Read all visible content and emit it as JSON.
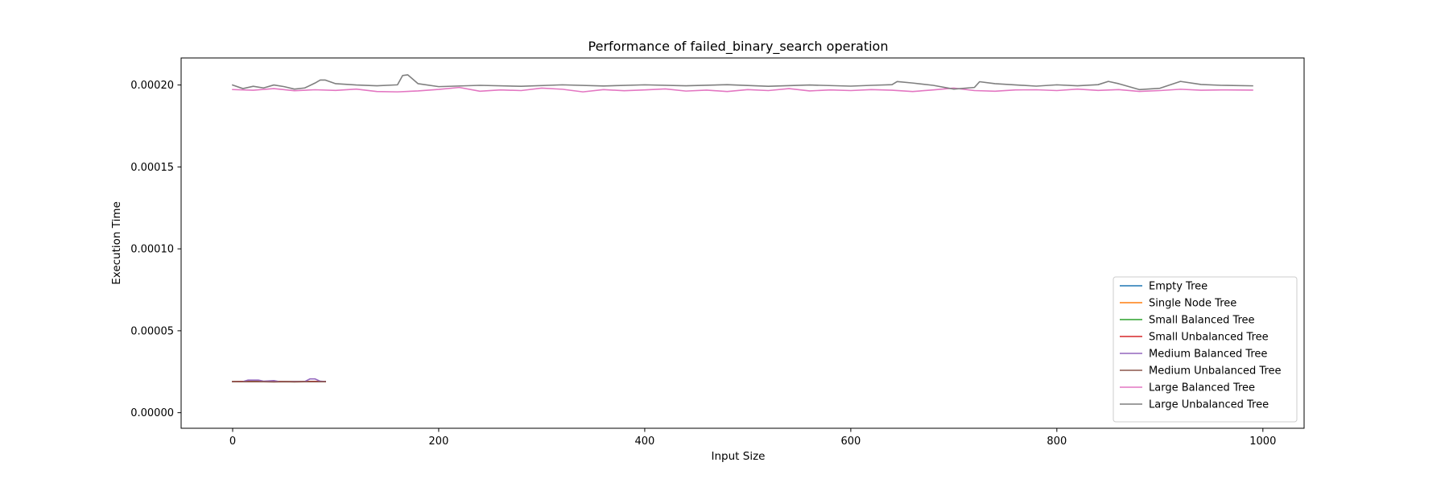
{
  "chart_data": {
    "type": "line",
    "title": "Performance of failed_binary_search operation",
    "xlabel": "Input Size",
    "ylabel": "Execution Time",
    "xlim": [
      -50,
      1040
    ],
    "ylim": [
      -9.5e-06,
      0.0002165
    ],
    "xticks": [
      0,
      200,
      400,
      600,
      800,
      1000
    ],
    "xtick_labels": [
      "0",
      "200",
      "400",
      "600",
      "800",
      "1000"
    ],
    "yticks": [
      0.0,
      5e-05,
      0.0001,
      0.00015,
      0.0002
    ],
    "ytick_labels": [
      "0.00000",
      "0.00005",
      "0.00010",
      "0.00015",
      "0.00020"
    ],
    "grid": false,
    "legend_position": "lower-right",
    "series": [
      {
        "name": "Empty Tree",
        "color": "#1f77b4",
        "x": [
          0,
          10,
          20,
          30,
          40,
          50,
          60,
          70,
          80,
          90
        ],
        "y": [
          1.89e-05,
          1.89e-05,
          1.9e-05,
          1.89e-05,
          1.89e-05,
          1.9e-05,
          1.89e-05,
          1.89e-05,
          1.89e-05,
          1.89e-05
        ]
      },
      {
        "name": "Single Node Tree",
        "color": "#ff7f0e",
        "x": [
          0,
          10,
          20,
          30,
          40,
          50,
          60,
          70,
          80,
          90
        ],
        "y": [
          1.89e-05,
          1.9e-05,
          1.9e-05,
          1.89e-05,
          1.89e-05,
          1.89e-05,
          1.89e-05,
          1.9e-05,
          1.89e-05,
          1.89e-05
        ]
      },
      {
        "name": "Small Balanced Tree",
        "color": "#2ca02c",
        "x": [
          0,
          10,
          20,
          30,
          40,
          50,
          60,
          70,
          80,
          90
        ],
        "y": [
          1.9e-05,
          1.9e-05,
          1.91e-05,
          1.9e-05,
          1.9e-05,
          1.89e-05,
          1.9e-05,
          1.9e-05,
          1.9e-05,
          1.9e-05
        ]
      },
      {
        "name": "Small Unbalanced Tree",
        "color": "#d62728",
        "x": [
          0,
          10,
          20,
          30,
          40,
          50,
          60,
          70,
          80,
          90
        ],
        "y": [
          1.9e-05,
          1.91e-05,
          1.9e-05,
          1.9e-05,
          1.91e-05,
          1.9e-05,
          1.9e-05,
          1.9e-05,
          1.91e-05,
          1.9e-05
        ]
      },
      {
        "name": "Medium Balanced Tree",
        "color": "#9467bd",
        "x": [
          0,
          10,
          15,
          25,
          30,
          40,
          45,
          55,
          60,
          70,
          75,
          80,
          85,
          90
        ],
        "y": [
          1.89e-05,
          1.9e-05,
          1.99e-05,
          1.99e-05,
          1.92e-05,
          1.96e-05,
          1.9e-05,
          1.89e-05,
          1.9e-05,
          1.9e-05,
          2.06e-05,
          2.06e-05,
          1.92e-05,
          1.9e-05
        ]
      },
      {
        "name": "Medium Unbalanced Tree",
        "color": "#8c564b",
        "x": [
          0,
          10,
          20,
          30,
          40,
          50,
          60,
          70,
          80,
          90
        ],
        "y": [
          1.89e-05,
          1.89e-05,
          1.9e-05,
          1.89e-05,
          1.88e-05,
          1.89e-05,
          1.88e-05,
          1.89e-05,
          1.89e-05,
          1.89e-05
        ]
      },
      {
        "name": "Large Balanced Tree",
        "color": "#e377c2",
        "x": [
          0,
          20,
          40,
          60,
          80,
          100,
          120,
          140,
          160,
          180,
          200,
          220,
          240,
          260,
          280,
          300,
          320,
          340,
          360,
          380,
          400,
          420,
          440,
          460,
          480,
          500,
          520,
          540,
          560,
          580,
          600,
          620,
          640,
          660,
          680,
          700,
          720,
          740,
          760,
          780,
          800,
          820,
          840,
          860,
          880,
          900,
          920,
          940,
          960,
          990
        ],
        "y": [
          0.0001972,
          0.0001968,
          0.0001978,
          0.0001965,
          0.0001971,
          0.0001967,
          0.0001975,
          0.000196,
          0.0001958,
          0.0001964,
          0.0001973,
          0.0001985,
          0.0001962,
          0.000197,
          0.0001966,
          0.0001981,
          0.0001974,
          0.0001958,
          0.0001972,
          0.0001965,
          0.000197,
          0.0001976,
          0.0001963,
          0.0001969,
          0.000196,
          0.0001972,
          0.0001966,
          0.0001978,
          0.0001964,
          0.000197,
          0.0001966,
          0.0001972,
          0.0001968,
          0.000196,
          0.000197,
          0.0001981,
          0.0001966,
          0.0001962,
          0.000197,
          0.0001971,
          0.0001966,
          0.0001975,
          0.0001967,
          0.0001972,
          0.0001961,
          0.0001966,
          0.0001974,
          0.0001968,
          0.000197,
          0.0001969
        ]
      },
      {
        "name": "Large Unbalanced Tree",
        "color": "#7f7f7f",
        "x": [
          0,
          10,
          20,
          30,
          40,
          50,
          60,
          70,
          80,
          85,
          90,
          100,
          120,
          140,
          160,
          165,
          170,
          180,
          200,
          240,
          280,
          320,
          360,
          400,
          440,
          480,
          520,
          560,
          600,
          620,
          640,
          645,
          660,
          680,
          700,
          720,
          725,
          740,
          780,
          800,
          820,
          840,
          850,
          860,
          880,
          900,
          910,
          920,
          940,
          960,
          990
        ],
        "y": [
          0.0002,
          0.0001978,
          0.0001992,
          0.0001982,
          0.0002,
          0.000199,
          0.0001975,
          0.0001982,
          0.0002012,
          0.000203,
          0.000203,
          0.0002008,
          0.0002,
          0.0001995,
          0.0002001,
          0.0002058,
          0.0002062,
          0.0002008,
          0.000199,
          0.0001998,
          0.0001992,
          0.0002001,
          0.0001994,
          0.0002001,
          0.0001995,
          0.0002002,
          0.0001992,
          0.0002,
          0.0001993,
          0.0001998,
          0.0002002,
          0.0002021,
          0.0002012,
          0.0001998,
          0.0001975,
          0.0001985,
          0.000202,
          0.0002008,
          0.0001993,
          0.0002001,
          0.0001995,
          0.0002002,
          0.0002022,
          0.0002008,
          0.0001972,
          0.000198,
          0.0002001,
          0.0002022,
          0.0002003,
          0.0001998,
          0.0001995
        ]
      }
    ]
  }
}
